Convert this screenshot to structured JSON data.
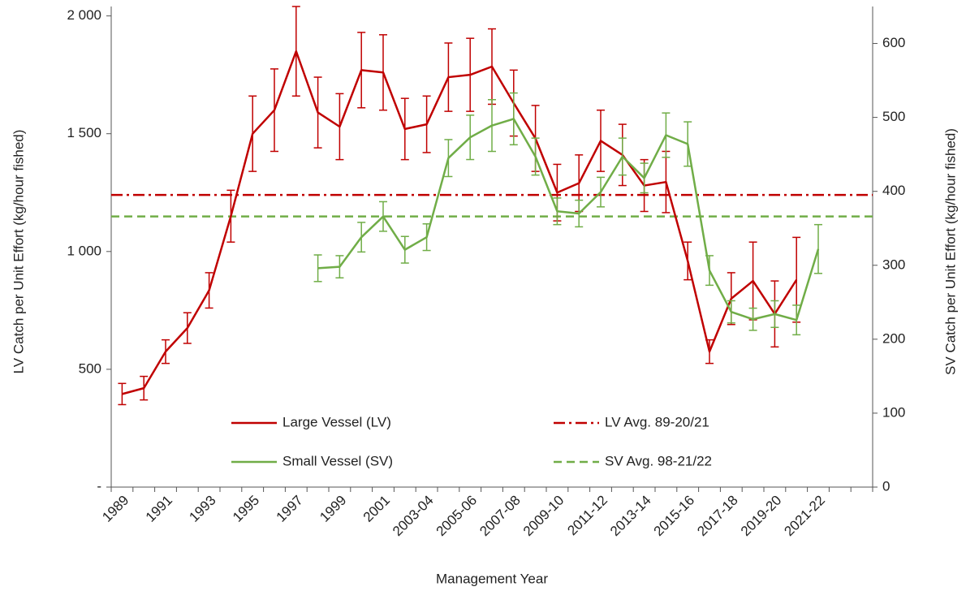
{
  "chart_data": {
    "type": "line",
    "x_label": "Management Year",
    "y_label": "LV Catch per Unit Effort (kg/hour fished)",
    "y2_label": "SV Catch per Unit Effort (kg/hour fished)",
    "categories": [
      "1989",
      null,
      "1991",
      null,
      "1993",
      null,
      "1995",
      null,
      "1997",
      null,
      "1999",
      null,
      "2001",
      null,
      "2003-04",
      null,
      "2005-06",
      null,
      "2007-08",
      null,
      "2009-10",
      null,
      "2011-12",
      null,
      "2013-14",
      null,
      "2015-16",
      null,
      "2017-18",
      null,
      "2019-20",
      null,
      "2021-22",
      null,
      null
    ],
    "ylim": [
      0,
      2040
    ],
    "yticks": [
      {
        "value": 0,
        "label": "-"
      },
      500,
      {
        "value": 1000,
        "label": "1 000"
      },
      {
        "value": 1500,
        "label": "1 500"
      },
      {
        "value": 2000,
        "label": "2 000"
      }
    ],
    "y2lim": [
      0,
      650
    ],
    "y2ticks": [
      0,
      100,
      200,
      300,
      400,
      500,
      600
    ],
    "series": [
      {
        "name": "Large Vessel (LV)",
        "color": "#c00000",
        "values": [
          395,
          420,
          575,
          675,
          835,
          1150,
          1500,
          1600,
          1850,
          1590,
          1530,
          1770,
          1760,
          1520,
          1540,
          1740,
          1750,
          1785,
          1630,
          1480,
          1250,
          1290,
          1470,
          1410,
          1280,
          1295,
          960,
          575,
          800,
          875,
          735,
          880,
          null,
          null,
          null
        ],
        "errors": [
          45,
          50,
          50,
          65,
          75,
          110,
          160,
          175,
          190,
          150,
          140,
          160,
          160,
          130,
          120,
          145,
          155,
          160,
          140,
          140,
          120,
          120,
          130,
          130,
          110,
          130,
          80,
          50,
          110,
          165,
          140,
          180,
          null,
          null,
          null
        ]
      },
      {
        "name": "Small Vessel (SV)",
        "color": "#70ad47",
        "axis": "y2",
        "values": [
          null,
          null,
          null,
          null,
          null,
          null,
          null,
          null,
          null,
          296,
          298,
          338,
          366,
          321,
          338,
          445,
          473,
          489,
          498,
          447,
          373,
          370,
          399,
          447,
          418,
          476,
          464,
          293,
          237,
          227,
          234,
          226,
          322,
          null,
          null
        ],
        "errors": [
          null,
          null,
          null,
          null,
          null,
          null,
          null,
          null,
          null,
          18,
          15,
          20,
          20,
          18,
          18,
          25,
          30,
          35,
          35,
          25,
          18,
          18,
          20,
          25,
          20,
          30,
          30,
          20,
          15,
          15,
          18,
          20,
          33,
          null,
          null
        ]
      }
    ],
    "reference_lines": [
      {
        "name": "LV Avg. 89-20/21",
        "value": 1240,
        "color": "#c00000",
        "dash": "dash-dot"
      },
      {
        "name": "SV Avg. 98-21/22",
        "value": 366,
        "axis": "y2",
        "color": "#70ad47",
        "dash": "dash"
      }
    ],
    "legend": "lower center"
  }
}
